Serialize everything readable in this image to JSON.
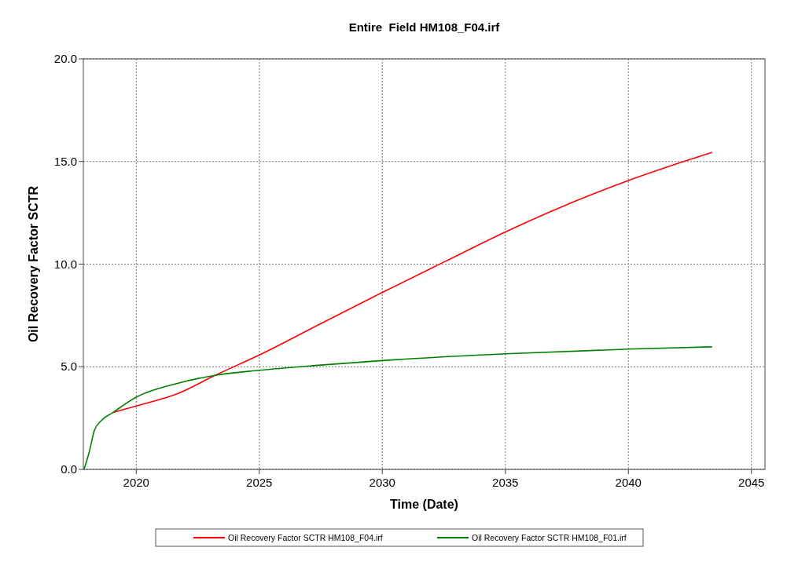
{
  "chart_data": {
    "type": "line",
    "title": "Entire  Field HM108_F04.irf",
    "xlabel": "Time (Date)",
    "ylabel": "Oil Recovery Factor SCTR",
    "xlim": [
      2017.85,
      2045.55
    ],
    "xticks": [
      2020,
      2025,
      2030,
      2035,
      2040,
      2045
    ],
    "ylim": [
      0,
      20
    ],
    "yticks": [
      {
        "value": 0,
        "label": "0.0"
      },
      {
        "value": 5,
        "label": "5.0"
      },
      {
        "value": 10,
        "label": "10.0"
      },
      {
        "value": 15,
        "label": "15.0"
      },
      {
        "value": 20,
        "label": "20.0"
      }
    ],
    "grid": true,
    "legend": "bottom",
    "line_style": "solid",
    "marker": "none",
    "series": [
      {
        "name": "Oil Recovery Factor SCTR HM108_F04.irf",
        "color": "#ff0000",
        "x": [
          2019.05,
          2020,
          2021.7,
          2023.2,
          2025,
          2027.5,
          2030,
          2032.5,
          2035,
          2037.5,
          2040,
          2042,
          2043.4
        ],
        "values": [
          2.77,
          3.09,
          3.7,
          4.58,
          5.57,
          7.1,
          8.62,
          10.1,
          11.57,
          12.9,
          14.07,
          14.9,
          15.45
        ]
      },
      {
        "name": "Oil Recovery Factor SCTR HM108_F01.irf",
        "color": "#008000",
        "x": [
          2017.88,
          2018.1,
          2018.3,
          2018.6,
          2019.05,
          2020,
          2021.7,
          2023.2,
          2025,
          2027.5,
          2030,
          2035,
          2040,
          2043.4
        ],
        "values": [
          0,
          0.9,
          1.9,
          2.4,
          2.77,
          3.52,
          4.2,
          4.58,
          4.83,
          5.08,
          5.3,
          5.63,
          5.86,
          5.97
        ]
      }
    ]
  }
}
